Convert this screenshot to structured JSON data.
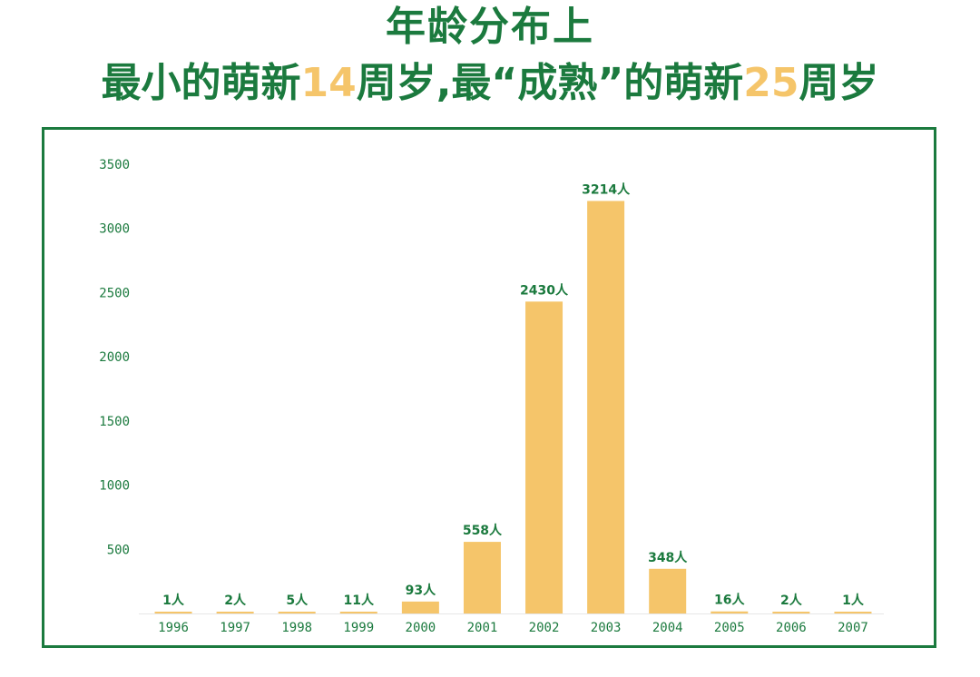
{
  "header": {
    "title_line1": "年龄分布上",
    "title_line2_parts": [
      {
        "text": "最小的萌新",
        "highlight": false
      },
      {
        "text": "14",
        "highlight": true
      },
      {
        "text": "周岁,最“成熟”的萌新",
        "highlight": false
      },
      {
        "text": "25",
        "highlight": true
      },
      {
        "text": "周岁",
        "highlight": false
      }
    ]
  },
  "colors": {
    "title": "#1b7a3e",
    "highlight": "#f5c56a",
    "bar": "#f5c56a",
    "frame": "#1b7a3e",
    "text": "#1b7a3e"
  },
  "chart_data": {
    "type": "bar",
    "categories": [
      "1996",
      "1997",
      "1998",
      "1999",
      "2000",
      "2001",
      "2002",
      "2003",
      "2004",
      "2005",
      "2006",
      "2007"
    ],
    "values": [
      1,
      2,
      5,
      11,
      93,
      558,
      2430,
      3214,
      348,
      16,
      2,
      1
    ],
    "data_labels": [
      "1人",
      "2人",
      "5人",
      "11人",
      "93人",
      "558人",
      "2430人",
      "3214人",
      "348人",
      "16人",
      "2人",
      "1人"
    ],
    "yticks": [
      500,
      1000,
      1500,
      2000,
      2500,
      3000,
      3500
    ],
    "ylim": [
      0,
      3500
    ],
    "grid": false,
    "title": "",
    "xlabel": "",
    "ylabel": ""
  }
}
